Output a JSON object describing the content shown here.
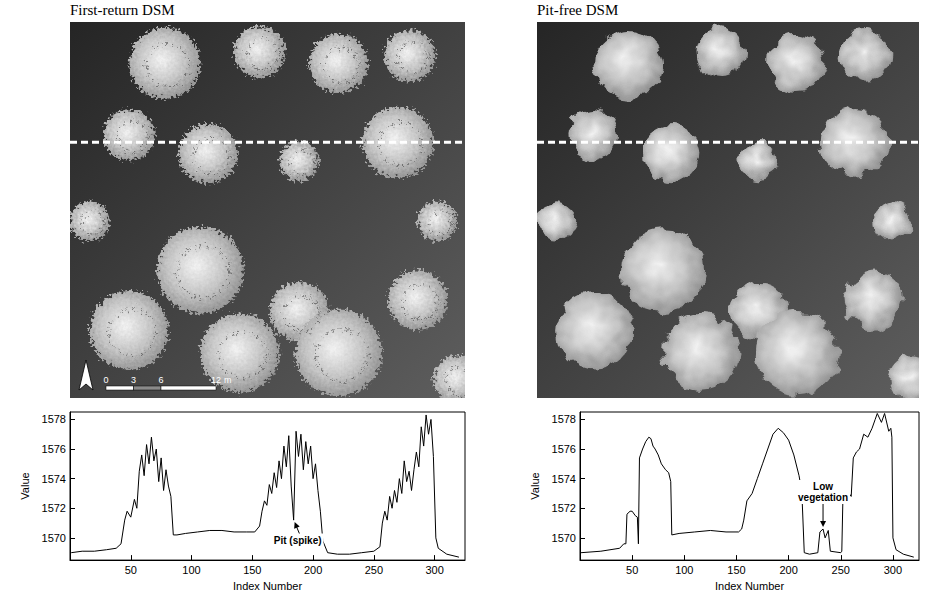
{
  "images": [
    {
      "title": "First-return DSM",
      "scale_bar": {
        "ticks": [
          0,
          3,
          6,
          12
        ],
        "unit": "m"
      }
    },
    {
      "title": "Pit-free DSM"
    }
  ],
  "chart_data": [
    {
      "type": "line",
      "color": "#000000",
      "xlabel": "Index Number",
      "ylabel": "Value",
      "xlim": [
        0,
        325
      ],
      "xticks": [
        50,
        100,
        150,
        200,
        250,
        300
      ],
      "ylim": [
        1568.5,
        1578.5
      ],
      "yticks": [
        1570,
        1572,
        1574,
        1576,
        1578
      ],
      "grid": false,
      "x": [
        1,
        10,
        20,
        30,
        38,
        42,
        45,
        47,
        50,
        53,
        55,
        57,
        59,
        61,
        63,
        65,
        67,
        69,
        71,
        73,
        75,
        77,
        79,
        81,
        83,
        85,
        88,
        95,
        105,
        115,
        125,
        135,
        145,
        152,
        156,
        158,
        160,
        162,
        164,
        166,
        168,
        170,
        172,
        174,
        176,
        178,
        180,
        182,
        184,
        186,
        188,
        190,
        192,
        194,
        196,
        198,
        200,
        202,
        204,
        206,
        208,
        212,
        220,
        230,
        240,
        250,
        255,
        257,
        259,
        261,
        263,
        265,
        267,
        269,
        271,
        273,
        275,
        277,
        279,
        281,
        283,
        285,
        287,
        289,
        291,
        293,
        295,
        297,
        299,
        301,
        303,
        310,
        320
      ],
      "values": [
        1569.0,
        1569.1,
        1569.1,
        1569.2,
        1569.3,
        1569.6,
        1571.2,
        1571.8,
        1571.4,
        1572.6,
        1572.0,
        1574.5,
        1575.6,
        1574.2,
        1576.3,
        1575.0,
        1576.8,
        1575.2,
        1576.0,
        1573.8,
        1575.4,
        1573.2,
        1574.6,
        1573.5,
        1572.8,
        1570.2,
        1570.2,
        1570.3,
        1570.4,
        1570.5,
        1570.5,
        1570.4,
        1570.4,
        1570.4,
        1570.8,
        1571.8,
        1572.5,
        1572.2,
        1573.6,
        1573.0,
        1574.4,
        1573.4,
        1575.2,
        1574.0,
        1576.2,
        1574.8,
        1576.9,
        1573.5,
        1571.2,
        1577.2,
        1575.5,
        1577.0,
        1574.6,
        1576.5,
        1575.0,
        1576.2,
        1574.0,
        1575.0,
        1573.2,
        1571.8,
        1569.8,
        1569.0,
        1568.9,
        1568.9,
        1569.0,
        1569.1,
        1569.4,
        1571.0,
        1571.8,
        1571.2,
        1572.8,
        1572.0,
        1573.2,
        1572.4,
        1574.0,
        1573.0,
        1575.2,
        1573.8,
        1574.5,
        1573.2,
        1574.6,
        1575.8,
        1574.8,
        1577.5,
        1576.2,
        1578.3,
        1577.0,
        1578.0,
        1575.5,
        1570.0,
        1569.3,
        1568.9,
        1568.7
      ],
      "annotations": [
        {
          "text": "Pit (spike)",
          "x": 184,
          "y": 1571.2
        }
      ]
    },
    {
      "type": "line",
      "color": "#000000",
      "xlabel": "Index Number",
      "ylabel": "Value",
      "xlim": [
        0,
        325
      ],
      "xticks": [
        50,
        100,
        150,
        200,
        250,
        300
      ],
      "ylim": [
        1568.5,
        1578.5
      ],
      "yticks": [
        1570,
        1572,
        1574,
        1576,
        1578
      ],
      "grid": false,
      "x": [
        1,
        20,
        38,
        42,
        44,
        45,
        48,
        50,
        53,
        55,
        56,
        57,
        60,
        63,
        66,
        68,
        70,
        72,
        75,
        78,
        82,
        85,
        87,
        88,
        95,
        110,
        125,
        140,
        152,
        155,
        157,
        160,
        165,
        170,
        175,
        180,
        185,
        190,
        195,
        200,
        205,
        210,
        212,
        213,
        215,
        220,
        228,
        230,
        233,
        235,
        238,
        240,
        250,
        251,
        252,
        256,
        258,
        260,
        262,
        265,
        268,
        272,
        276,
        280,
        283,
        285,
        289,
        292,
        296,
        298,
        299,
        300,
        303,
        310,
        320
      ],
      "values": [
        1569.0,
        1569.1,
        1569.3,
        1569.6,
        1569.6,
        1571.6,
        1571.8,
        1571.8,
        1571.5,
        1571.4,
        1569.6,
        1575.4,
        1576.0,
        1576.5,
        1576.8,
        1576.7,
        1576.2,
        1576.0,
        1575.6,
        1575.0,
        1574.6,
        1574.4,
        1573.8,
        1570.2,
        1570.3,
        1570.4,
        1570.5,
        1570.4,
        1570.4,
        1570.6,
        1571.2,
        1572.5,
        1573.0,
        1574.0,
        1575.0,
        1576.0,
        1577.0,
        1577.4,
        1577.1,
        1576.6,
        1575.6,
        1574.2,
        1573.4,
        1572.5,
        1569.0,
        1568.9,
        1569.0,
        1570.4,
        1570.6,
        1570.0,
        1570.5,
        1569.1,
        1569.0,
        1569.1,
        1572.5,
        1572.8,
        1573.0,
        1572.8,
        1575.4,
        1575.8,
        1576.0,
        1577.0,
        1576.8,
        1577.4,
        1578.0,
        1578.4,
        1577.8,
        1578.4,
        1577.2,
        1577.4,
        1576.8,
        1570.0,
        1569.2,
        1568.9,
        1568.7
      ],
      "annotations": [
        {
          "text": "Low vegetation",
          "x": 233,
          "y": 1570.6
        }
      ]
    }
  ]
}
